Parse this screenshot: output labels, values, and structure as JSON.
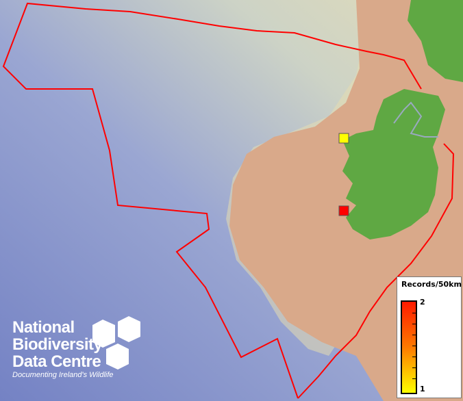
{
  "map": {
    "colors": {
      "sea_deep": "#7f8fc8",
      "sea_shallow": "#d8dcc0",
      "land": "#5fa843",
      "shelf": "#d8a888",
      "boundary": "#ff0000"
    },
    "records": [
      {
        "label": "record-square-west",
        "count": 1,
        "color": "#ffff00"
      },
      {
        "label": "record-square-southwest",
        "count": 2,
        "color": "#ff0000"
      }
    ]
  },
  "legend": {
    "title": "Records/50km",
    "max": "2",
    "min": "1"
  },
  "logo": {
    "line1": "National",
    "line2": "Biodiversity",
    "line3": "Data Centre",
    "tagline": "Documenting Ireland's Wildlife"
  }
}
